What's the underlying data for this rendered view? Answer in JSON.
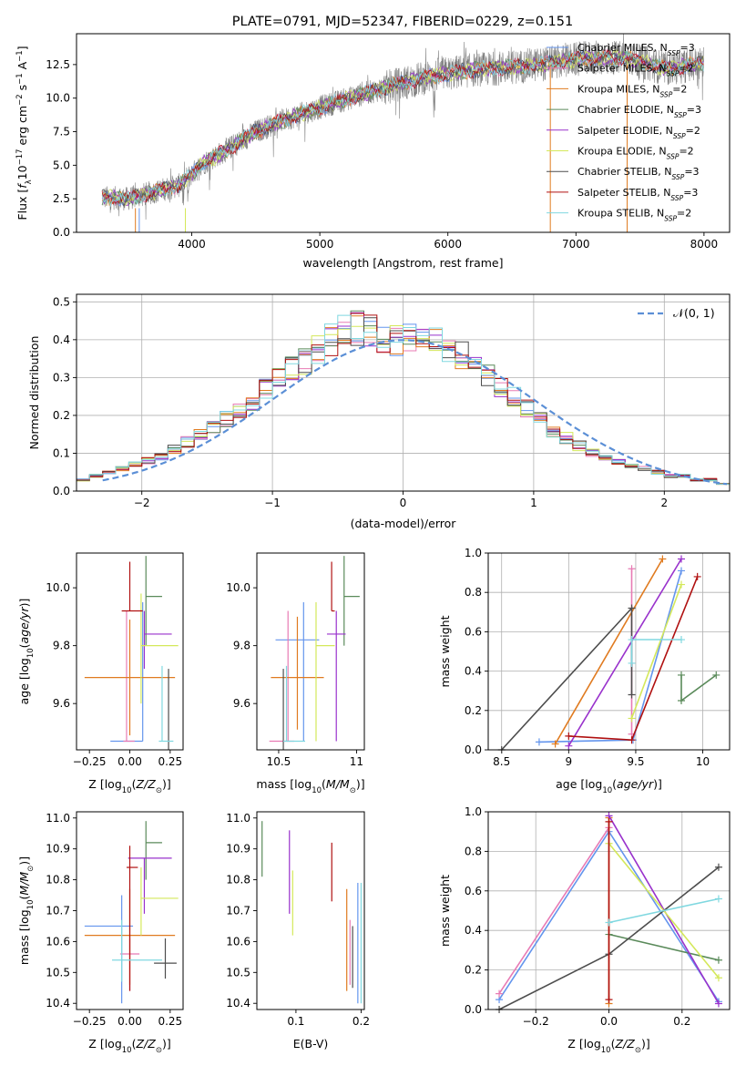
{
  "colors": {
    "Chabrier MILES": "#6495ed",
    "Salpeter MILES": "#e87bb4",
    "Kroupa MILES": "#e07b20",
    "Chabrier ELODIE": "#5a8a5a",
    "Salpeter ELODIE": "#9932cc",
    "Kroupa ELODIE": "#d4e85a",
    "Chabrier STELIB": "#4d4d4d",
    "Salpeter STELIB": "#b01010",
    "Kroupa STELIB": "#80d8e0",
    "data": "#808080",
    "gauss": "#5b8fd6"
  },
  "chart_data": [
    {
      "type": "line",
      "title": "PLATE=0791, MJD=52347, FIBERID=0229, z=0.151",
      "xlabel": "wavelength [Angstrom, rest frame]",
      "ylabel": "Flux [f_λ 10^-17 erg cm^-2 s^-1 A^-1]",
      "xlim": [
        3100,
        8200
      ],
      "ylim": [
        0,
        14.8
      ],
      "xticks": [
        4000,
        5000,
        6000,
        7000,
        8000
      ],
      "yticks": [
        0.0,
        2.5,
        5.0,
        7.5,
        10.0,
        12.5
      ],
      "continuum": {
        "x": [
          3300,
          3500,
          3700,
          3900,
          4100,
          4300,
          4500,
          4700,
          5000,
          5300,
          5600,
          5900,
          6200,
          6500,
          6800,
          7100,
          7400,
          7700,
          8000
        ],
        "y": [
          2.6,
          2.5,
          3.0,
          3.5,
          5.2,
          6.3,
          7.5,
          8.3,
          9.3,
          10.2,
          11.0,
          11.7,
          12.1,
          12.3,
          12.6,
          13.0,
          13.0,
          12.2,
          12.6
        ]
      },
      "legend": [
        {
          "label": "Chabrier MILES, N_SSP=3",
          "base": "Chabrier MILES",
          "n": "3"
        },
        {
          "label": "Salpeter MILES, N_SSP=2",
          "base": "Salpeter MILES",
          "n": "2"
        },
        {
          "label": "Kroupa MILES, N_SSP=2",
          "base": "Kroupa MILES",
          "n": "2"
        },
        {
          "label": "Chabrier ELODIE, N_SSP=3",
          "base": "Chabrier ELODIE",
          "n": "3"
        },
        {
          "label": "Salpeter ELODIE, N_SSP=2",
          "base": "Salpeter ELODIE",
          "n": "2"
        },
        {
          "label": "Kroupa ELODIE, N_SSP=2",
          "base": "Kroupa ELODIE",
          "n": "2"
        },
        {
          "label": "Chabrier STELIB, N_SSP=3",
          "base": "Chabrier STELIB",
          "n": "3"
        },
        {
          "label": "Salpeter STELIB, N_SSP=3",
          "base": "Salpeter STELIB",
          "n": "3"
        },
        {
          "label": "Kroupa STELIB, N_SSP=2",
          "base": "Kroupa STELIB",
          "n": "2"
        }
      ],
      "legend_position": "upper right"
    },
    {
      "type": "histogram",
      "xlabel": "(data-model)/error",
      "ylabel": "Normed distribution",
      "xlim": [
        -2.5,
        2.5
      ],
      "ylim": [
        0,
        0.52
      ],
      "xticks": [
        -2,
        -1,
        0,
        1,
        2
      ],
      "yticks": [
        0.0,
        0.1,
        0.2,
        0.3,
        0.4,
        0.5
      ],
      "grid": true,
      "bins": [
        -2.5,
        -2.4,
        -2.3,
        -2.2,
        -2.1,
        -2.0,
        -1.9,
        -1.8,
        -1.7,
        -1.6,
        -1.5,
        -1.4,
        -1.3,
        -1.2,
        -1.1,
        -1.0,
        -0.9,
        -0.8,
        -0.7,
        -0.6,
        -0.5,
        -0.4,
        -0.3,
        -0.2,
        -0.1,
        0.0,
        0.1,
        0.2,
        0.3,
        0.4,
        0.5,
        0.6,
        0.7,
        0.8,
        0.9,
        1.0,
        1.1,
        1.2,
        1.3,
        1.4,
        1.5,
        1.6,
        1.7,
        1.8,
        1.9,
        2.0,
        2.1,
        2.2,
        2.3,
        2.4,
        2.5
      ],
      "mean_density": [
        0.03,
        0.04,
        0.05,
        0.06,
        0.07,
        0.08,
        0.09,
        0.11,
        0.13,
        0.15,
        0.17,
        0.19,
        0.21,
        0.24,
        0.27,
        0.3,
        0.32,
        0.34,
        0.37,
        0.4,
        0.42,
        0.43,
        0.42,
        0.41,
        0.4,
        0.4,
        0.39,
        0.39,
        0.38,
        0.36,
        0.33,
        0.31,
        0.28,
        0.25,
        0.22,
        0.19,
        0.16,
        0.14,
        0.12,
        0.1,
        0.09,
        0.08,
        0.07,
        0.06,
        0.05,
        0.04,
        0.04,
        0.03,
        0.03,
        0.02
      ],
      "gaussian": {
        "label": "𝒩(0, 1)",
        "mu": 0,
        "sigma": 1,
        "style": "dashed"
      },
      "legend_position": "upper right"
    },
    {
      "type": "errorbar",
      "xlabel": "Z [log10(Z/Z⊙)]",
      "ylabel": "age  [log10(age/yr)]",
      "xlim": [
        -0.33,
        0.33
      ],
      "ylim": [
        9.44,
        10.12
      ],
      "xticks": [
        -0.25,
        0.0,
        0.25
      ],
      "xticklabels": [
        "−0.25",
        "0.00",
        "0.25"
      ],
      "yticks": [
        9.6,
        9.8,
        10.0
      ],
      "points": [
        {
          "m": "Chabrier MILES",
          "x": 0.08,
          "y": 9.47,
          "xerr": [
            0.2,
            0.0
          ],
          "yerr": [
            0.0,
            0.48
          ]
        },
        {
          "m": "Salpeter MILES",
          "x": -0.02,
          "y": 9.47,
          "xerr": [
            0.02,
            0.05
          ],
          "yerr": [
            0.0,
            0.45
          ]
        },
        {
          "m": "Kroupa MILES",
          "x": 0.0,
          "y": 9.69,
          "xerr": [
            0.28,
            0.28
          ],
          "yerr": [
            0.2,
            0.2
          ]
        },
        {
          "m": "Chabrier ELODIE",
          "x": 0.1,
          "y": 9.97,
          "xerr": [
            0.0,
            0.1
          ],
          "yerr": [
            0.17,
            0.14
          ]
        },
        {
          "m": "Salpeter ELODIE",
          "x": 0.09,
          "y": 9.84,
          "xerr": [
            0.0,
            0.17
          ],
          "yerr": [
            0.12,
            0.08
          ]
        },
        {
          "m": "Kroupa ELODIE",
          "x": 0.07,
          "y": 9.8,
          "xerr": [
            0.0,
            0.23
          ],
          "yerr": [
            0.2,
            0.18
          ]
        },
        {
          "m": "Chabrier STELIB",
          "x": 0.24,
          "y": 9.5,
          "xerr": [
            0.0,
            0.0
          ],
          "yerr": [
            0.07,
            0.22
          ]
        },
        {
          "m": "Salpeter STELIB",
          "x": 0.0,
          "y": 9.92,
          "xerr": [
            0.05,
            0.08
          ],
          "yerr": [
            0.0,
            0.17
          ]
        },
        {
          "m": "Kroupa STELIB",
          "x": 0.2,
          "y": 9.47,
          "xerr": [
            0.02,
            0.07
          ],
          "yerr": [
            0.0,
            0.26
          ]
        }
      ]
    },
    {
      "type": "errorbar",
      "xlabel": "mass [log10(M/M⊙)]",
      "ylabel": "",
      "xlim": [
        10.36,
        11.05
      ],
      "ylim": [
        9.44,
        10.12
      ],
      "xticks": [
        10.5,
        11.0
      ],
      "yticks": [
        9.6,
        9.8,
        10.0
      ],
      "points": [
        {
          "m": "Chabrier MILES",
          "x": 10.66,
          "y": 9.82,
          "xerr": [
            0.18,
            0.1
          ],
          "yerr": [
            0.35,
            0.13
          ]
        },
        {
          "m": "Salpeter MILES",
          "x": 10.56,
          "y": 9.47,
          "xerr": [
            0.12,
            0.04
          ],
          "yerr": [
            0.0,
            0.45
          ]
        },
        {
          "m": "Kroupa MILES",
          "x": 10.62,
          "y": 9.69,
          "xerr": [
            0.17,
            0.17
          ],
          "yerr": [
            0.18,
            0.21
          ]
        },
        {
          "m": "Chabrier ELODIE",
          "x": 10.92,
          "y": 9.97,
          "xerr": [
            0.0,
            0.1
          ],
          "yerr": [
            0.17,
            0.14
          ]
        },
        {
          "m": "Salpeter ELODIE",
          "x": 10.87,
          "y": 9.84,
          "xerr": [
            0.06,
            0.06
          ],
          "yerr": [
            0.37,
            0.08
          ]
        },
        {
          "m": "Kroupa ELODIE",
          "x": 10.74,
          "y": 9.8,
          "xerr": [
            0.0,
            0.12
          ],
          "yerr": [
            0.33,
            0.15
          ]
        },
        {
          "m": "Chabrier STELIB",
          "x": 10.53,
          "y": 9.5,
          "xerr": [
            0.0,
            0.0
          ],
          "yerr": [
            0.07,
            0.22
          ]
        },
        {
          "m": "Salpeter STELIB",
          "x": 10.84,
          "y": 9.92,
          "xerr": [
            0.0,
            0.02
          ],
          "yerr": [
            0.0,
            0.17
          ]
        },
        {
          "m": "Kroupa STELIB",
          "x": 10.55,
          "y": 9.47,
          "xerr": [
            0.02,
            0.12
          ],
          "yerr": [
            0.0,
            0.26
          ]
        }
      ]
    },
    {
      "type": "line",
      "xlabel": "age  [log10(age/yr)]",
      "ylabel": "mass weight",
      "xlim": [
        8.4,
        10.2
      ],
      "ylim": [
        0,
        1
      ],
      "xticks": [
        8.5,
        9.0,
        9.5,
        10.0
      ],
      "yticks": [
        0.0,
        0.2,
        0.4,
        0.6,
        0.8,
        1.0
      ],
      "grid": true,
      "series": [
        {
          "m": "Chabrier MILES",
          "x": [
            8.78,
            9.48,
            9.84
          ],
          "y": [
            0.04,
            0.05,
            0.91
          ]
        },
        {
          "m": "Salpeter MILES",
          "x": [
            9.47,
            9.47
          ],
          "y": [
            0.08,
            0.92
          ]
        },
        {
          "m": "Kroupa MILES",
          "x": [
            8.9,
            9.7
          ],
          "y": [
            0.03,
            0.97
          ]
        },
        {
          "m": "Chabrier ELODIE",
          "x": [
            9.84,
            9.84,
            10.1
          ],
          "y": [
            0.38,
            0.25,
            0.38
          ]
        },
        {
          "m": "Salpeter ELODIE",
          "x": [
            9.0,
            9.84
          ],
          "y": [
            0.02,
            0.97
          ]
        },
        {
          "m": "Kroupa ELODIE",
          "x": [
            9.47,
            9.84
          ],
          "y": [
            0.16,
            0.84
          ]
        },
        {
          "m": "Chabrier STELIB",
          "x": [
            8.5,
            9.47,
            9.47
          ],
          "y": [
            0.0,
            0.72,
            0.28
          ]
        },
        {
          "m": "Salpeter STELIB",
          "x": [
            9.0,
            9.47,
            9.96
          ],
          "y": [
            0.07,
            0.05,
            0.88
          ]
        },
        {
          "m": "Kroupa STELIB",
          "x": [
            9.47,
            9.47,
            9.84
          ],
          "y": [
            0.44,
            0.56,
            0.56
          ]
        }
      ]
    },
    {
      "type": "errorbar",
      "xlabel": "Z [log10(Z/Z⊙)]",
      "ylabel": "mass [log10(M/M⊙)]",
      "xlim": [
        -0.33,
        0.33
      ],
      "ylim": [
        10.38,
        11.02
      ],
      "xticks": [
        -0.25,
        0.0,
        0.25
      ],
      "xticklabels": [
        "−0.25",
        "0.00",
        "0.25"
      ],
      "yticks": [
        10.4,
        10.5,
        10.6,
        10.7,
        10.8,
        10.9,
        11.0
      ],
      "points": [
        {
          "m": "Chabrier MILES",
          "x": -0.05,
          "y": 10.65,
          "xerr": [
            0.23,
            0.07
          ],
          "yerr": [
            0.25,
            0.1
          ]
        },
        {
          "m": "Salpeter MILES",
          "x": 0.0,
          "y": 10.56,
          "xerr": [
            0.06,
            0.06
          ],
          "yerr": [
            0.12,
            0.05
          ]
        },
        {
          "m": "Kroupa MILES",
          "x": 0.0,
          "y": 10.62,
          "xerr": [
            0.28,
            0.28
          ],
          "yerr": [
            0.16,
            0.15
          ]
        },
        {
          "m": "Chabrier ELODIE",
          "x": 0.1,
          "y": 10.92,
          "xerr": [
            0.0,
            0.1
          ],
          "yerr": [
            0.12,
            0.07
          ]
        },
        {
          "m": "Salpeter ELODIE",
          "x": 0.09,
          "y": 10.87,
          "xerr": [
            0.1,
            0.17
          ],
          "yerr": [
            0.18,
            0.0
          ]
        },
        {
          "m": "Kroupa ELODIE",
          "x": 0.07,
          "y": 10.74,
          "xerr": [
            0.0,
            0.23
          ],
          "yerr": [
            0.12,
            0.1
          ]
        },
        {
          "m": "Chabrier STELIB",
          "x": 0.22,
          "y": 10.53,
          "xerr": [
            0.07,
            0.07
          ],
          "yerr": [
            0.05,
            0.08
          ]
        },
        {
          "m": "Salpeter STELIB",
          "x": 0.0,
          "y": 10.84,
          "xerr": [
            0.02,
            0.05
          ],
          "yerr": [
            0.4,
            0.07
          ]
        },
        {
          "m": "Kroupa STELIB",
          "x": -0.05,
          "y": 10.54,
          "xerr": [
            0.06,
            0.25
          ],
          "yerr": [
            0.07,
            0.13
          ]
        }
      ]
    },
    {
      "type": "errorbar",
      "xlabel": "E(B-V)",
      "ylabel": "",
      "xlim": [
        0.04,
        0.205
      ],
      "ylim": [
        10.38,
        11.02
      ],
      "xticks": [
        0.1,
        0.2
      ],
      "yticks": [
        10.4,
        10.5,
        10.6,
        10.7,
        10.8,
        10.9,
        11.0
      ],
      "points": [
        {
          "m": "Chabrier MILES",
          "x": 0.195,
          "y": 10.62,
          "yerr": [
            0.22,
            0.17
          ]
        },
        {
          "m": "Salpeter MILES",
          "x": 0.183,
          "y": 10.6,
          "yerr": [
            0.14,
            0.07
          ]
        },
        {
          "m": "Kroupa MILES",
          "x": 0.178,
          "y": 10.61,
          "yerr": [
            0.17,
            0.16
          ]
        },
        {
          "m": "Chabrier ELODIE",
          "x": 0.048,
          "y": 10.9,
          "yerr": [
            0.09,
            0.09
          ]
        },
        {
          "m": "Salpeter ELODIE",
          "x": 0.09,
          "y": 10.82,
          "yerr": [
            0.13,
            0.14
          ]
        },
        {
          "m": "Kroupa ELODIE",
          "x": 0.095,
          "y": 10.73,
          "yerr": [
            0.11,
            0.1
          ]
        },
        {
          "m": "Chabrier STELIB",
          "x": 0.187,
          "y": 10.55,
          "yerr": [
            0.1,
            0.1
          ]
        },
        {
          "m": "Salpeter STELIB",
          "x": 0.155,
          "y": 10.82,
          "yerr": [
            0.09,
            0.1
          ]
        },
        {
          "m": "Kroupa STELIB",
          "x": 0.2,
          "y": 10.6,
          "yerr": [
            0.2,
            0.19
          ]
        }
      ]
    },
    {
      "type": "line",
      "xlabel": "Z [log10(Z/Z⊙)]",
      "ylabel": "mass weight",
      "xlim": [
        -0.33,
        0.33
      ],
      "ylim": [
        0,
        1
      ],
      "xticks": [
        -0.2,
        0.0,
        0.2
      ],
      "xticklabels": [
        "−0.2",
        "0.0",
        "0.2"
      ],
      "yticks": [
        0.0,
        0.2,
        0.4,
        0.6,
        0.8,
        1.0
      ],
      "grid": true,
      "series": [
        {
          "m": "Chabrier MILES",
          "x": [
            -0.3,
            0.0,
            0.3
          ],
          "y": [
            0.05,
            0.9,
            0.04
          ]
        },
        {
          "m": "Salpeter MILES",
          "x": [
            -0.3,
            0.0
          ],
          "y": [
            0.08,
            0.92
          ]
        },
        {
          "m": "Kroupa MILES",
          "x": [
            0.0,
            0.0
          ],
          "y": [
            0.03,
            0.97
          ]
        },
        {
          "m": "Chabrier ELODIE",
          "x": [
            0.0,
            0.3
          ],
          "y": [
            0.38,
            0.25
          ]
        },
        {
          "m": "Salpeter ELODIE",
          "x": [
            0.0,
            0.3
          ],
          "y": [
            0.98,
            0.03
          ]
        },
        {
          "m": "Kroupa ELODIE",
          "x": [
            0.0,
            0.3
          ],
          "y": [
            0.84,
            0.16
          ]
        },
        {
          "m": "Chabrier STELIB",
          "x": [
            -0.3,
            0.0,
            0.3
          ],
          "y": [
            0.0,
            0.28,
            0.72
          ]
        },
        {
          "m": "Salpeter STELIB",
          "x": [
            0.0,
            0.0
          ],
          "y": [
            0.05,
            0.95
          ]
        },
        {
          "m": "Kroupa STELIB",
          "x": [
            0.0,
            0.3
          ],
          "y": [
            0.44,
            0.56
          ]
        }
      ]
    }
  ]
}
